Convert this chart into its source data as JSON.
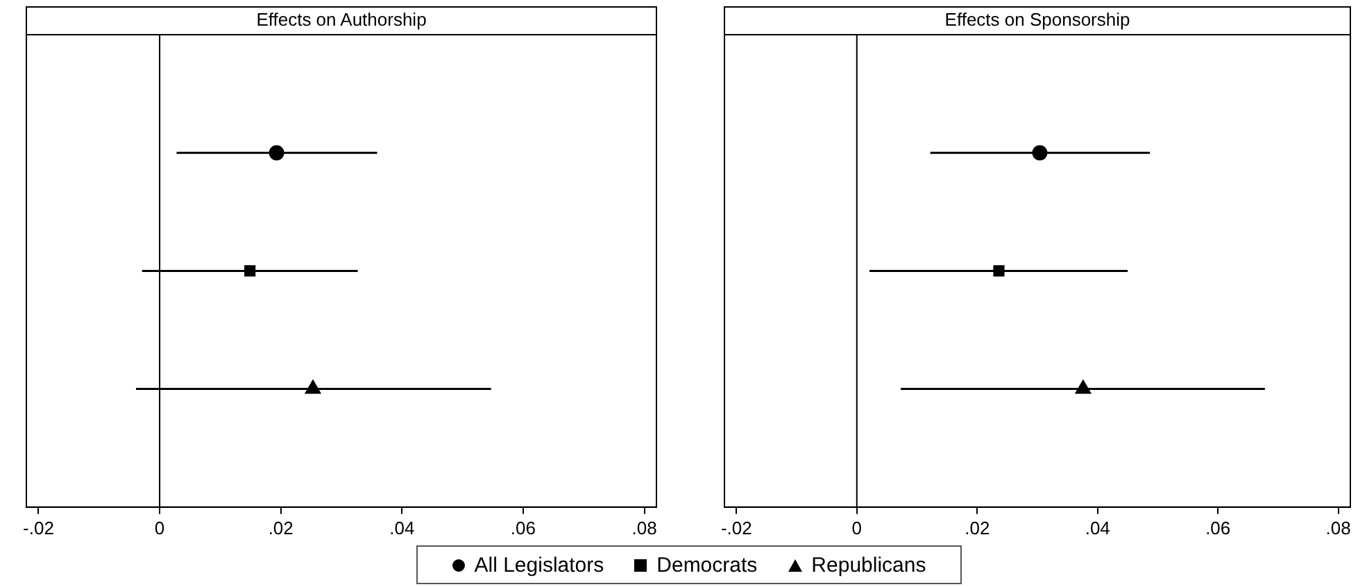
{
  "chart_data": [
    {
      "type": "scatter",
      "title": "Effects on Authorship",
      "orientation": "horizontal",
      "categories": [
        null,
        null,
        null
      ],
      "series": [
        {
          "name": "All Legislators",
          "color": "#000000",
          "marker": "circle",
          "values": [
            0.0193,
            null,
            null
          ],
          "errors": [
            [
              0.0028,
              0.0359
            ],
            null,
            null
          ]
        },
        {
          "name": "Democrats",
          "color": "#000000",
          "marker": "square",
          "values": [
            null,
            0.0149,
            null
          ],
          "errors": [
            null,
            [
              -0.0029,
              0.0327
            ],
            null
          ]
        },
        {
          "name": "Republicans",
          "color": "#000000",
          "marker": "triangle",
          "values": [
            null,
            null,
            0.0253
          ],
          "errors": [
            null,
            null,
            [
              -0.0039,
              0.0547
            ]
          ]
        }
      ],
      "xlim": [
        -0.022,
        0.082
      ],
      "xticks": [
        {
          "value": -0.02,
          "label": "-.02"
        },
        0,
        {
          "value": 0.02,
          "label": ".02"
        },
        {
          "value": 0.04,
          "label": ".04"
        },
        {
          "value": 0.06,
          "label": ".06"
        },
        {
          "value": 0.08,
          "label": ".08"
        }
      ],
      "ref_lines": [
        {
          "axis": "x",
          "value": 0,
          "color": "#000000"
        }
      ],
      "tick_labels": "x",
      "grid": false,
      "legend": "bottom"
    },
    {
      "type": "scatter",
      "title": "Effects on Sponsorship",
      "orientation": "horizontal",
      "categories": [
        null,
        null,
        null
      ],
      "series": [
        {
          "color": "#000000",
          "marker": "circle",
          "values": [
            0.0304,
            null,
            null
          ],
          "errors": [
            [
              0.0122,
              0.0487
            ],
            null,
            null
          ]
        },
        {
          "color": "#000000",
          "marker": "square",
          "values": [
            null,
            0.0236,
            null
          ],
          "errors": [
            null,
            [
              0.0021,
              0.045
            ],
            null
          ]
        },
        {
          "color": "#000000",
          "marker": "triangle",
          "values": [
            null,
            null,
            0.0376
          ],
          "errors": [
            null,
            null,
            [
              0.0073,
              0.0678
            ]
          ]
        }
      ],
      "xlim": [
        -0.022,
        0.082
      ],
      "xticks": [
        {
          "value": -0.02,
          "label": "-.02"
        },
        0,
        {
          "value": 0.02,
          "label": ".02"
        },
        {
          "value": 0.04,
          "label": ".04"
        },
        {
          "value": 0.06,
          "label": ".06"
        },
        {
          "value": 0.08,
          "label": ".08"
        }
      ],
      "ref_lines": [
        {
          "axis": "x",
          "value": 0,
          "color": "#000000"
        }
      ],
      "tick_labels": "x",
      "grid": false
    }
  ]
}
